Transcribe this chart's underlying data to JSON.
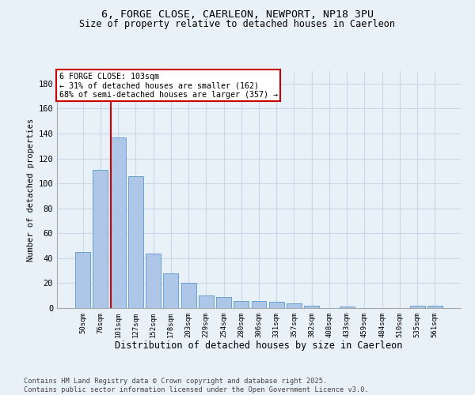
{
  "title_line1": "6, FORGE CLOSE, CAERLEON, NEWPORT, NP18 3PU",
  "title_line2": "Size of property relative to detached houses in Caerleon",
  "xlabel": "Distribution of detached houses by size in Caerleon",
  "ylabel": "Number of detached properties",
  "bar_labels": [
    "50sqm",
    "76sqm",
    "101sqm",
    "127sqm",
    "152sqm",
    "178sqm",
    "203sqm",
    "229sqm",
    "254sqm",
    "280sqm",
    "306sqm",
    "331sqm",
    "357sqm",
    "382sqm",
    "408sqm",
    "433sqm",
    "459sqm",
    "484sqm",
    "510sqm",
    "535sqm",
    "561sqm"
  ],
  "bar_values": [
    45,
    111,
    137,
    106,
    44,
    28,
    20,
    10,
    9,
    6,
    6,
    5,
    4,
    2,
    0,
    1,
    0,
    0,
    0,
    2,
    2
  ],
  "bar_color": "#aec6e8",
  "bar_edge_color": "#5a9ac9",
  "grid_color": "#c8d8e8",
  "background_color": "#e8f0f8",
  "vline_color": "#cc0000",
  "vline_x": 1.6,
  "annotation_text": "6 FORGE CLOSE: 103sqm\n← 31% of detached houses are smaller (162)\n68% of semi-detached houses are larger (357) →",
  "annotation_box_edgecolor": "#cc0000",
  "footer_text": "Contains HM Land Registry data © Crown copyright and database right 2025.\nContains public sector information licensed under the Open Government Licence v3.0.",
  "ylim": [
    0,
    190
  ],
  "yticks": [
    0,
    20,
    40,
    60,
    80,
    100,
    120,
    140,
    160,
    180
  ]
}
